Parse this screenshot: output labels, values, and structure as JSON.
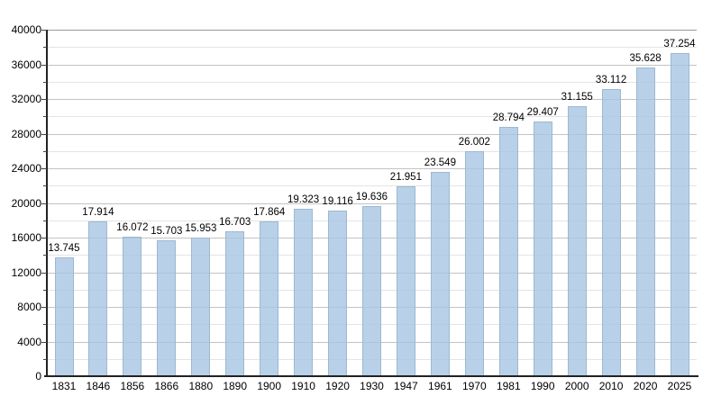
{
  "chart_data": {
    "type": "bar",
    "title": "",
    "xlabel": "",
    "ylabel": "",
    "categories": [
      "1831",
      "1846",
      "1856",
      "1866",
      "1880",
      "1890",
      "1900",
      "1910",
      "1920",
      "1930",
      "1947",
      "1961",
      "1970",
      "1981",
      "1990",
      "2000",
      "2010",
      "2020",
      "2025"
    ],
    "values": [
      13745,
      17914,
      16072,
      15703,
      15953,
      16703,
      17864,
      19323,
      19116,
      19636,
      21951,
      23549,
      26002,
      28794,
      29407,
      31155,
      33112,
      35628,
      37254
    ],
    "value_labels": [
      "13.745",
      "17.914",
      "16.072",
      "15.703",
      "15.953",
      "16.703",
      "17.864",
      "19.323",
      "19.116",
      "19.636",
      "21.951",
      "23.549",
      "26.002",
      "28.794",
      "29.407",
      "31.155",
      "33.112",
      "35.628",
      "37.254"
    ],
    "ylim": [
      0,
      40000
    ],
    "y_major_step": 4000,
    "y_minor_step": 2000,
    "y_tick_labels": [
      "0",
      "4000",
      "8000",
      "12000",
      "16000",
      "20000",
      "24000",
      "28000",
      "32000",
      "36000",
      "40000"
    ],
    "grid": true,
    "legend": false,
    "colors": {
      "bar_fill": "#b6cee6",
      "bar_border": "#9cb8d2",
      "gridline_major": "#c3c3c3",
      "gridline_minor": "#e4e4e4",
      "gridline_top": "#999999",
      "axis": "#222222",
      "text": "#000000",
      "background": "#ffffff"
    }
  }
}
